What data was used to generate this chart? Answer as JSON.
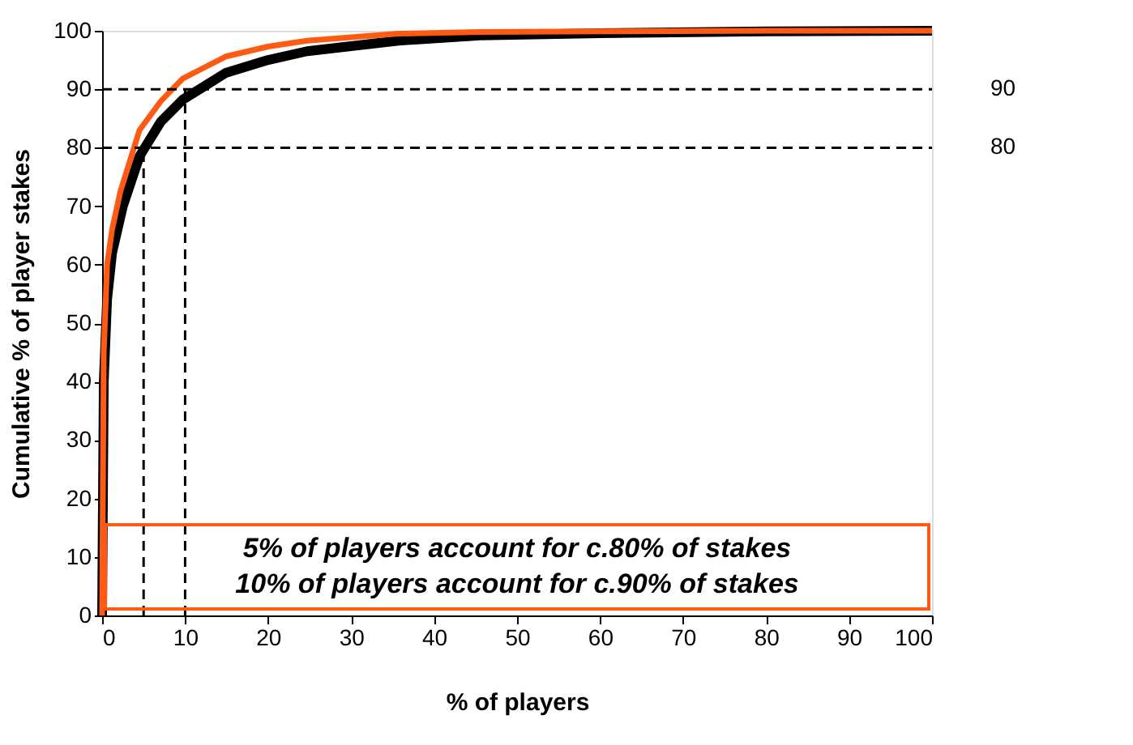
{
  "chart_data": {
    "type": "line",
    "xlabel": "% of players",
    "ylabel": "Cumulative % of player stakes",
    "xlim": [
      0,
      100
    ],
    "ylim": [
      0,
      100
    ],
    "xticks": [
      0,
      10,
      20,
      30,
      40,
      50,
      60,
      70,
      80,
      90,
      100
    ],
    "yticks": [
      0,
      10,
      20,
      30,
      40,
      50,
      60,
      70,
      80,
      90,
      100
    ],
    "grid": false,
    "legend": false,
    "marker": "none",
    "line_style": "solid",
    "series": [
      {
        "color": "#000000",
        "x": [
          0,
          0.2,
          0.6,
          1.2,
          2.5,
          4.5,
          7.1,
          9.7,
          14.9,
          20,
          24.7,
          35.7,
          45.5,
          60,
          80,
          100
        ],
        "values": [
          0,
          40,
          54,
          62,
          70,
          78.5,
          84.5,
          88.2,
          92.8,
          95,
          96.5,
          98.3,
          99.2,
          99.6,
          99.9,
          100
        ]
      },
      {
        "color": "#ff5a14",
        "x": [
          0,
          0.2,
          0.6,
          1.2,
          2.2,
          4.5,
          7.1,
          9.7,
          14.9,
          20,
          24.7,
          35.7,
          45.5,
          60,
          80,
          100
        ],
        "values": [
          0,
          45,
          60,
          66,
          72.5,
          83,
          88,
          91.8,
          95.6,
          97.3,
          98.3,
          99.5,
          99.8,
          99.9,
          100,
          100
        ]
      }
    ],
    "ref_lines": [
      {
        "axis": "y",
        "value": 80,
        "label": "80",
        "line_style": "dashed",
        "color": "#000000"
      },
      {
        "axis": "y",
        "value": 90,
        "label": "90",
        "line_style": "dashed",
        "color": "#000000"
      },
      {
        "axis": "x",
        "value": 5,
        "line_style": "dashed",
        "color": "#000000"
      },
      {
        "axis": "x",
        "value": 10,
        "line_style": "dashed",
        "color": "#000000"
      }
    ],
    "annotations": [
      "5% of players account for c.80% of stakes",
      "10% of players account for c.90% of stakes"
    ]
  }
}
